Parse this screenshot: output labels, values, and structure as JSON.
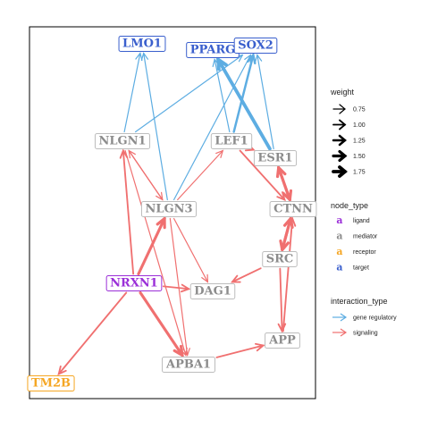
{
  "colors": {
    "ligand": "#9b2fd8",
    "mediator": "#8c8c8c",
    "receptor": "#f5a623",
    "target": "#3a5fcd",
    "gene_regulatory": "#5dade2",
    "signaling": "#f07070"
  },
  "nodes": [
    {
      "id": "LMO1",
      "label": "LMO1",
      "type": "target"
    },
    {
      "id": "PPARG",
      "label": "PPARG",
      "type": "target"
    },
    {
      "id": "SOX2",
      "label": "SOX2",
      "type": "target"
    },
    {
      "id": "NLGN1",
      "label": "NLGN1",
      "type": "mediator"
    },
    {
      "id": "LEF1",
      "label": "LEF1",
      "type": "mediator"
    },
    {
      "id": "ESR1",
      "label": "ESR1",
      "type": "mediator"
    },
    {
      "id": "NLGN3",
      "label": "NLGN3",
      "type": "mediator"
    },
    {
      "id": "CTNNB1",
      "label": "CTNN",
      "type": "mediator"
    },
    {
      "id": "SRC",
      "label": "SRC",
      "type": "mediator"
    },
    {
      "id": "NRXN1",
      "label": "NRXN1",
      "type": "ligand"
    },
    {
      "id": "DAG1",
      "label": "DAG1",
      "type": "mediator"
    },
    {
      "id": "APP",
      "label": "APP",
      "type": "mediator"
    },
    {
      "id": "APBA1",
      "label": "APBA1",
      "type": "mediator"
    },
    {
      "id": "TM2B",
      "label": "TM2B",
      "type": "receptor"
    }
  ],
  "edges": [
    {
      "from": "NLGN1",
      "to": "LMO1",
      "kind": "gene_regulatory",
      "weight": 0.75
    },
    {
      "from": "NLGN1",
      "to": "SOX2",
      "kind": "gene_regulatory",
      "weight": 0.75
    },
    {
      "from": "NLGN3",
      "to": "LMO1",
      "kind": "gene_regulatory",
      "weight": 0.75
    },
    {
      "from": "NLGN3",
      "to": "SOX2",
      "kind": "gene_regulatory",
      "weight": 0.75
    },
    {
      "from": "LEF1",
      "to": "PPARG",
      "kind": "gene_regulatory",
      "weight": 0.75
    },
    {
      "from": "LEF1",
      "to": "SOX2",
      "kind": "gene_regulatory",
      "weight": 1.25
    },
    {
      "from": "ESR1",
      "to": "PPARG",
      "kind": "gene_regulatory",
      "weight": 1.75
    },
    {
      "from": "ESR1",
      "to": "SOX2",
      "kind": "gene_regulatory",
      "weight": 0.75
    },
    {
      "from": "NLGN1",
      "to": "NLGN3",
      "kind": "signaling",
      "weight": 0.75
    },
    {
      "from": "NLGN3",
      "to": "NLGN1",
      "kind": "signaling",
      "weight": 0.75
    },
    {
      "from": "NLGN3",
      "to": "LEF1",
      "kind": "signaling",
      "weight": 0.75
    },
    {
      "from": "ESR1",
      "to": "LEF1",
      "kind": "signaling",
      "weight": 1.0
    },
    {
      "from": "LEF1",
      "to": "CTNNB1",
      "kind": "signaling",
      "weight": 1.0
    },
    {
      "from": "ESR1",
      "to": "CTNNB1",
      "kind": "signaling",
      "weight": 1.5
    },
    {
      "from": "CTNNB1",
      "to": "ESR1",
      "kind": "signaling",
      "weight": 1.5
    },
    {
      "from": "SRC",
      "to": "CTNNB1",
      "kind": "signaling",
      "weight": 1.5
    },
    {
      "from": "CTNNB1",
      "to": "SRC",
      "kind": "signaling",
      "weight": 1.5
    },
    {
      "from": "SRC",
      "to": "DAG1",
      "kind": "signaling",
      "weight": 1.0
    },
    {
      "from": "SRC",
      "to": "APP",
      "kind": "signaling",
      "weight": 1.0
    },
    {
      "from": "APP",
      "to": "CTNNB1",
      "kind": "signaling",
      "weight": 1.0
    },
    {
      "from": "APBA1",
      "to": "APP",
      "kind": "signaling",
      "weight": 1.0
    },
    {
      "from": "NRXN1",
      "to": "NLGN1",
      "kind": "signaling",
      "weight": 1.0
    },
    {
      "from": "NRXN1",
      "to": "NLGN3",
      "kind": "signaling",
      "weight": 1.5
    },
    {
      "from": "NRXN1",
      "to": "DAG1",
      "kind": "signaling",
      "weight": 1.0
    },
    {
      "from": "NRXN1",
      "to": "APBA1",
      "kind": "signaling",
      "weight": 1.5
    },
    {
      "from": "NRXN1",
      "to": "TM2B",
      "kind": "signaling",
      "weight": 1.0
    },
    {
      "from": "NLGN3",
      "to": "DAG1",
      "kind": "signaling",
      "weight": 0.75
    },
    {
      "from": "NLGN3",
      "to": "APBA1",
      "kind": "signaling",
      "weight": 0.75
    },
    {
      "from": "NLGN1",
      "to": "APBA1",
      "kind": "signaling",
      "weight": 0.75
    }
  ],
  "legend": {
    "weight": {
      "title": "weight",
      "items": [
        {
          "label": "0.75",
          "weight": 0.75
        },
        {
          "label": "1.00",
          "weight": 1.0
        },
        {
          "label": "1.25",
          "weight": 1.25
        },
        {
          "label": "1.50",
          "weight": 1.5
        },
        {
          "label": "1.75",
          "weight": 1.75
        }
      ]
    },
    "node_type": {
      "title": "node_type",
      "glyph": "a",
      "items": [
        {
          "label": "ligand",
          "type": "ligand"
        },
        {
          "label": "mediator",
          "type": "mediator"
        },
        {
          "label": "receptor",
          "type": "receptor"
        },
        {
          "label": "target",
          "type": "target"
        }
      ]
    },
    "interaction_type": {
      "title": "interaction_type",
      "items": [
        {
          "label": "gene regulatory",
          "kind": "gene_regulatory"
        },
        {
          "label": "signaling",
          "kind": "signaling"
        }
      ]
    }
  }
}
